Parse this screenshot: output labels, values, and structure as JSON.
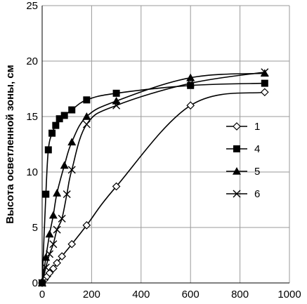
{
  "chart_data": {
    "type": "line",
    "title": "",
    "xlabel": "",
    "ylabel": "Высота осветленной зоны, см",
    "xlim": [
      0,
      1000
    ],
    "ylim": [
      0,
      25
    ],
    "xticks": [
      0,
      200,
      400,
      600,
      800,
      1000
    ],
    "yticks": [
      0,
      5,
      10,
      15,
      20,
      25
    ],
    "grid": true,
    "legend_position": "right",
    "series": [
      {
        "name": "1",
        "marker": "diamond-open",
        "x": [
          0,
          10,
          20,
          30,
          45,
          60,
          80,
          120,
          180,
          300,
          600,
          900
        ],
        "y": [
          0,
          0.3,
          0.6,
          0.9,
          1.3,
          1.8,
          2.4,
          3.5,
          5.2,
          8.7,
          16.0,
          17.2
        ]
      },
      {
        "name": "4",
        "marker": "square-filled",
        "x": [
          0,
          15,
          25,
          40,
          55,
          70,
          90,
          120,
          180,
          300,
          600,
          900
        ],
        "y": [
          0,
          8.0,
          12.0,
          13.5,
          14.2,
          14.8,
          15.1,
          15.6,
          16.5,
          17.1,
          17.8,
          18.0
        ]
      },
      {
        "name": "5",
        "marker": "triangle-filled",
        "x": [
          0,
          15,
          30,
          45,
          60,
          90,
          120,
          180,
          300,
          600,
          900
        ],
        "y": [
          0,
          2.3,
          4.4,
          6.1,
          8.1,
          10.6,
          12.7,
          15.0,
          16.4,
          18.5,
          18.9
        ]
      },
      {
        "name": "6",
        "marker": "x",
        "x": [
          0,
          15,
          30,
          45,
          60,
          80,
          100,
          120,
          180,
          300,
          600,
          900
        ],
        "y": [
          0,
          1.4,
          2.6,
          3.5,
          4.8,
          5.8,
          8.0,
          10.2,
          14.3,
          16.0,
          18.0,
          19.0
        ]
      }
    ]
  }
}
